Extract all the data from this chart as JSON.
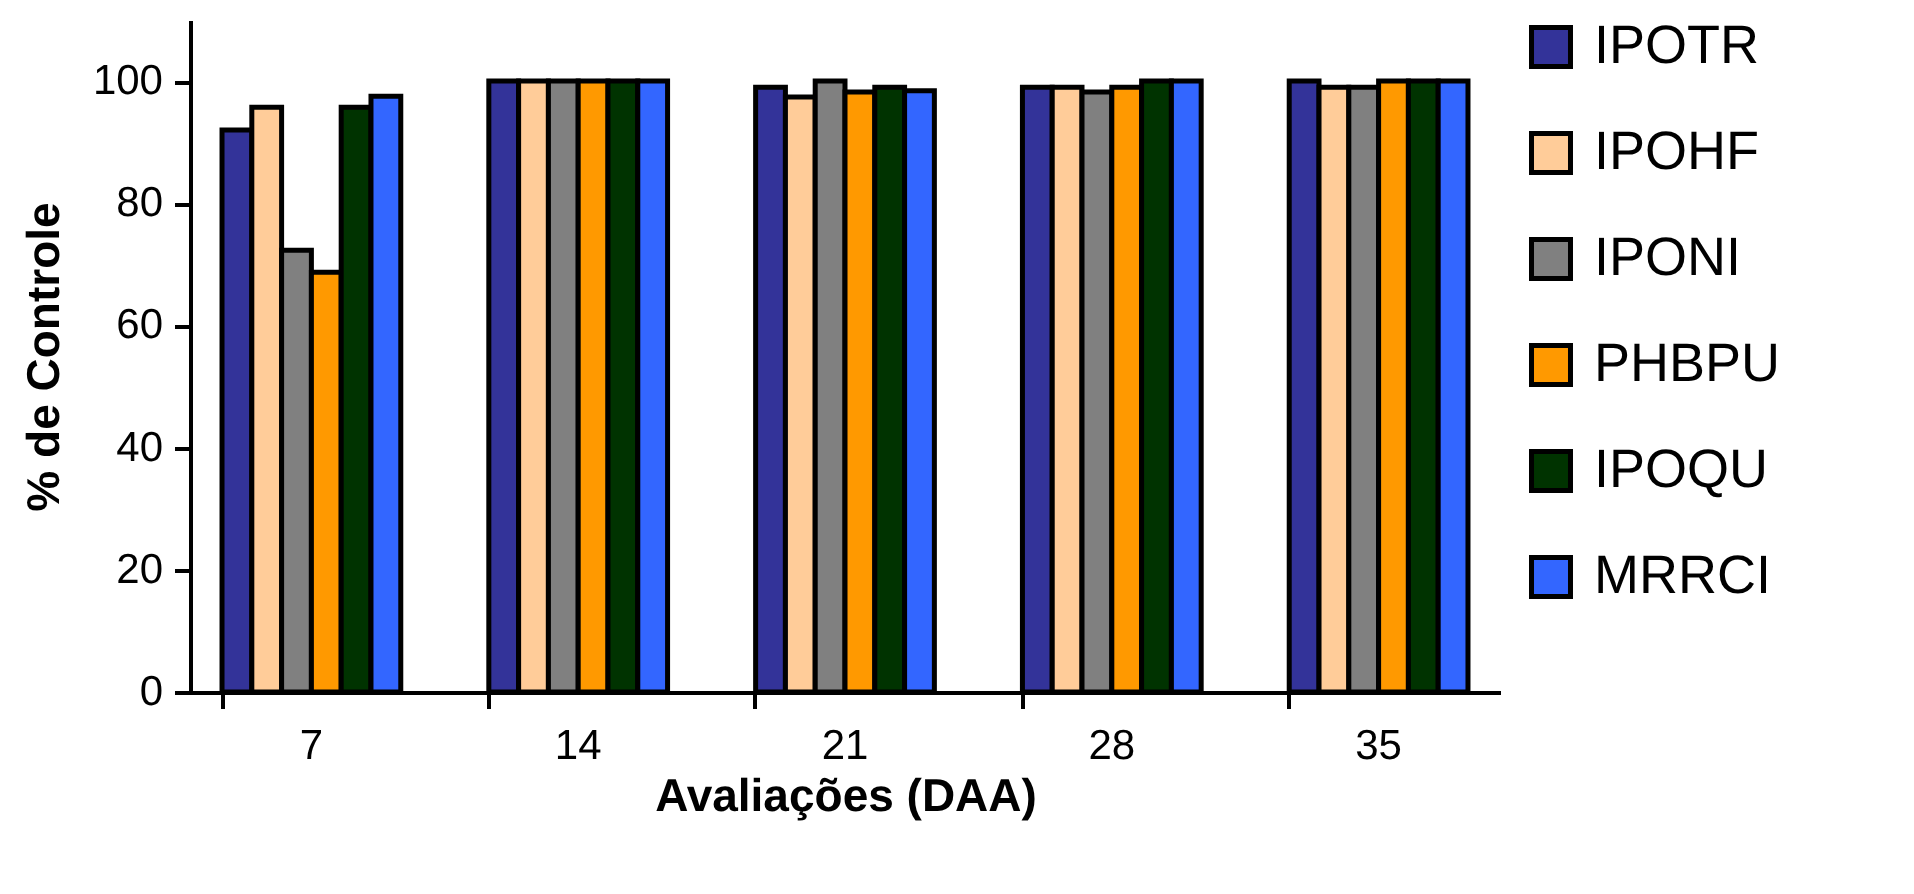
{
  "chart_data": {
    "type": "bar",
    "xlabel": "Avaliações (DAA)",
    "ylabel": "% de Controle",
    "categories": [
      "7",
      "14",
      "21",
      "28",
      "35"
    ],
    "series": [
      {
        "name": "IPOTR",
        "color": "#333399",
        "values": [
          92,
          100,
          99,
          99,
          100
        ]
      },
      {
        "name": "IPOHF",
        "color": "#ffcc99",
        "values": [
          95.7,
          100,
          97.4,
          99,
          99
        ]
      },
      {
        "name": "IPONI",
        "color": "#808080",
        "values": [
          72.3,
          100,
          100,
          98.2,
          99
        ]
      },
      {
        "name": "PHBPU",
        "color": "#ff9900",
        "values": [
          68.7,
          100,
          98.2,
          99,
          100
        ]
      },
      {
        "name": "IPOQU",
        "color": "#003300",
        "values": [
          95.7,
          100,
          99,
          100,
          100
        ]
      },
      {
        "name": "MRRCI",
        "color": "#3366ff",
        "values": [
          97.5,
          100,
          98.4,
          100,
          100
        ]
      }
    ],
    "ylim": [
      0,
      110
    ],
    "yticks": [
      0,
      20,
      40,
      60,
      80,
      100
    ],
    "grid": false,
    "legend": "right"
  }
}
